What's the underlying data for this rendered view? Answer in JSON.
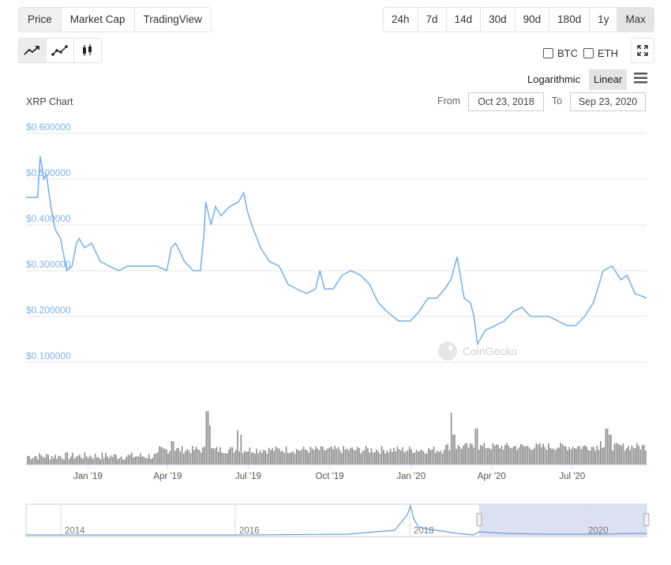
{
  "tabs": {
    "price": "Price",
    "market_cap": "Market Cap",
    "tradingview": "TradingView"
  },
  "ranges": [
    "24h",
    "7d",
    "14d",
    "30d",
    "90d",
    "180d",
    "1y",
    "Max"
  ],
  "active_range": "Max",
  "compare": {
    "btc": "BTC",
    "eth": "ETH"
  },
  "scale": {
    "log": "Logarithmic",
    "linear": "Linear"
  },
  "chart_title": "XRP Chart",
  "dates": {
    "from_label": "From",
    "from": "Oct 23, 2018",
    "to_label": "To",
    "to": "Sep 23, 2020"
  },
  "watermark": "CoinGecko",
  "colors": {
    "line": "#7eb3e8",
    "volume": "#888888",
    "navigator_fill": "#d8def0"
  },
  "chart_data": {
    "type": "line",
    "y_ticks": [
      "$0.100000",
      "$0.200000",
      "$0.300000",
      "$0.400000",
      "$0.500000",
      "$0.600000"
    ],
    "ylim": [
      0.1,
      0.6
    ],
    "x_ticks": [
      "Jan '19",
      "Apr '19",
      "Jul '19",
      "Oct '19",
      "Jan '20",
      "Apr '20",
      "Jul '20"
    ],
    "x_tick_dates": [
      "2019-01-01",
      "2019-04-01",
      "2019-07-01",
      "2019-10-01",
      "2020-01-01",
      "2020-04-01",
      "2020-07-01"
    ],
    "x_range": [
      "2018-10-23",
      "2020-09-23"
    ],
    "series": [
      {
        "x": [
          "2018-10-23",
          "2018-11-05",
          "2018-11-08",
          "2018-11-12",
          "2018-11-15",
          "2018-11-20",
          "2018-11-25",
          "2018-12-01",
          "2018-12-08",
          "2018-12-14",
          "2018-12-19",
          "2018-12-22",
          "2018-12-28",
          "2019-01-05",
          "2019-01-15",
          "2019-01-25",
          "2019-02-05",
          "2019-02-15",
          "2019-02-28",
          "2019-03-10",
          "2019-03-20",
          "2019-03-31",
          "2019-04-05",
          "2019-04-10",
          "2019-04-20",
          "2019-04-30",
          "2019-05-08",
          "2019-05-12",
          "2019-05-14",
          "2019-05-20",
          "2019-05-25",
          "2019-05-31",
          "2019-06-10",
          "2019-06-20",
          "2019-06-26",
          "2019-06-30",
          "2019-07-05",
          "2019-07-15",
          "2019-07-25",
          "2019-08-05",
          "2019-08-15",
          "2019-08-25",
          "2019-09-05",
          "2019-09-15",
          "2019-09-20",
          "2019-09-25",
          "2019-10-05",
          "2019-10-15",
          "2019-10-25",
          "2019-11-05",
          "2019-11-15",
          "2019-11-25",
          "2019-12-05",
          "2019-12-18",
          "2019-12-31",
          "2020-01-10",
          "2020-01-20",
          "2020-01-30",
          "2020-02-08",
          "2020-02-15",
          "2020-02-22",
          "2020-03-01",
          "2020-03-08",
          "2020-03-12",
          "2020-03-16",
          "2020-03-25",
          "2020-04-05",
          "2020-04-15",
          "2020-04-25",
          "2020-05-05",
          "2020-05-15",
          "2020-05-25",
          "2020-06-05",
          "2020-06-15",
          "2020-06-25",
          "2020-07-05",
          "2020-07-15",
          "2020-07-25",
          "2020-08-05",
          "2020-08-15",
          "2020-08-25",
          "2020-09-01",
          "2020-09-10",
          "2020-09-23"
        ],
        "values": [
          0.46,
          0.46,
          0.55,
          0.5,
          0.51,
          0.44,
          0.39,
          0.37,
          0.3,
          0.31,
          0.36,
          0.37,
          0.35,
          0.36,
          0.32,
          0.31,
          0.3,
          0.31,
          0.31,
          0.31,
          0.31,
          0.3,
          0.35,
          0.36,
          0.32,
          0.3,
          0.3,
          0.38,
          0.45,
          0.4,
          0.44,
          0.42,
          0.44,
          0.45,
          0.47,
          0.43,
          0.4,
          0.35,
          0.32,
          0.31,
          0.27,
          0.26,
          0.25,
          0.26,
          0.3,
          0.26,
          0.26,
          0.29,
          0.3,
          0.29,
          0.27,
          0.23,
          0.21,
          0.19,
          0.19,
          0.21,
          0.24,
          0.24,
          0.26,
          0.28,
          0.33,
          0.24,
          0.23,
          0.2,
          0.14,
          0.17,
          0.18,
          0.19,
          0.21,
          0.22,
          0.2,
          0.2,
          0.2,
          0.19,
          0.18,
          0.18,
          0.2,
          0.23,
          0.3,
          0.31,
          0.28,
          0.29,
          0.25,
          0.24
        ]
      }
    ],
    "navigator_ticks": [
      "2014",
      "2016",
      "2018",
      "2020"
    ]
  }
}
